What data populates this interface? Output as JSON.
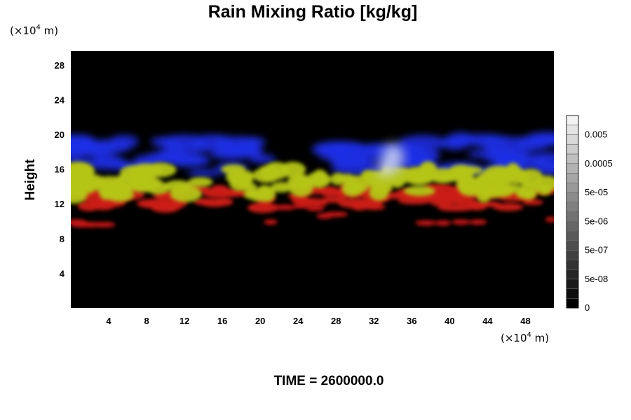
{
  "chart_data": {
    "type": "heatmap",
    "title": "Rain Mixing Ratio [kg/kg]",
    "ylabel": "Height",
    "x_unit": {
      "prefix": "(×10",
      "exponent": "4",
      "suffix": " m)"
    },
    "y_unit": {
      "prefix": "(×10",
      "exponent": "4",
      "suffix": " m)"
    },
    "xlim": [
      0,
      51
    ],
    "ylim": [
      0,
      29.6
    ],
    "xticks": [
      "4",
      "8",
      "12",
      "16",
      "20",
      "24",
      "28",
      "32",
      "36",
      "40",
      "44",
      "48"
    ],
    "yticks": [
      "4",
      "8",
      "12",
      "16",
      "20",
      "24",
      "28"
    ],
    "colorbar": {
      "labels": [
        "0",
        "5e-08",
        "5e-07",
        "5e-06",
        "5e-05",
        "0.0005",
        "0.005"
      ],
      "levels": 20
    },
    "footer": "TIME = 2600000.0",
    "layers": [
      {
        "color": "#1e2ee6",
        "height_range": [
          15.5,
          19.5
        ]
      },
      {
        "color": "#b5c515",
        "height_range": [
          13,
          16
        ]
      },
      {
        "color": "#cc1a14",
        "height_range": [
          11.5,
          14
        ]
      },
      {
        "color": "#b8c2ee",
        "height_range": [
          15,
          19
        ]
      }
    ]
  }
}
